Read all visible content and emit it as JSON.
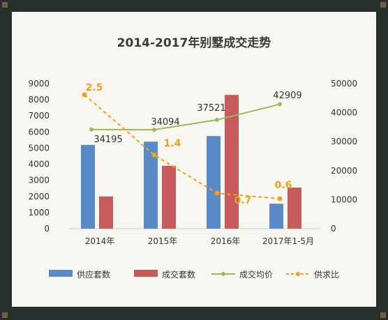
{
  "chart_data": {
    "type": "bar",
    "title": "2014-2017年别墅成交走势",
    "categories": [
      "2014年",
      "2015年",
      "2016年",
      "2017年1-5月"
    ],
    "left_axis": {
      "min": 0,
      "max": 9000,
      "ticks": [
        0,
        1000,
        2000,
        3000,
        4000,
        5000,
        6000,
        7000,
        8000,
        9000
      ]
    },
    "right_axis": {
      "min": 0,
      "max": 50000,
      "ticks": [
        0,
        10000,
        20000,
        30000,
        40000,
        50000
      ]
    },
    "series": [
      {
        "name": "供应套数",
        "type": "bar",
        "axis": "left",
        "color": "#5b8bc6",
        "values": [
          5200,
          5400,
          5750,
          1550
        ]
      },
      {
        "name": "成交套数",
        "type": "bar",
        "axis": "left",
        "color": "#c75b5b",
        "values": [
          2000,
          3900,
          8300,
          2550
        ]
      },
      {
        "name": "成交均价",
        "type": "line",
        "axis": "right",
        "color": "#9bbb59",
        "values": [
          34195,
          34094,
          37521,
          42909
        ],
        "labels": [
          "34195",
          "34094",
          "37521",
          "42909"
        ],
        "label_color": "#333333"
      },
      {
        "name": "供求比",
        "type": "line",
        "axis": "ratio",
        "dashed": true,
        "color": "#f0a020",
        "values": [
          2.5,
          1.4,
          0.7,
          0.6
        ],
        "labels": [
          "2.5",
          "1.4",
          "0.7",
          "0.6"
        ],
        "label_color": "#f0a020"
      }
    ],
    "grid": false,
    "legend": "bottom"
  }
}
